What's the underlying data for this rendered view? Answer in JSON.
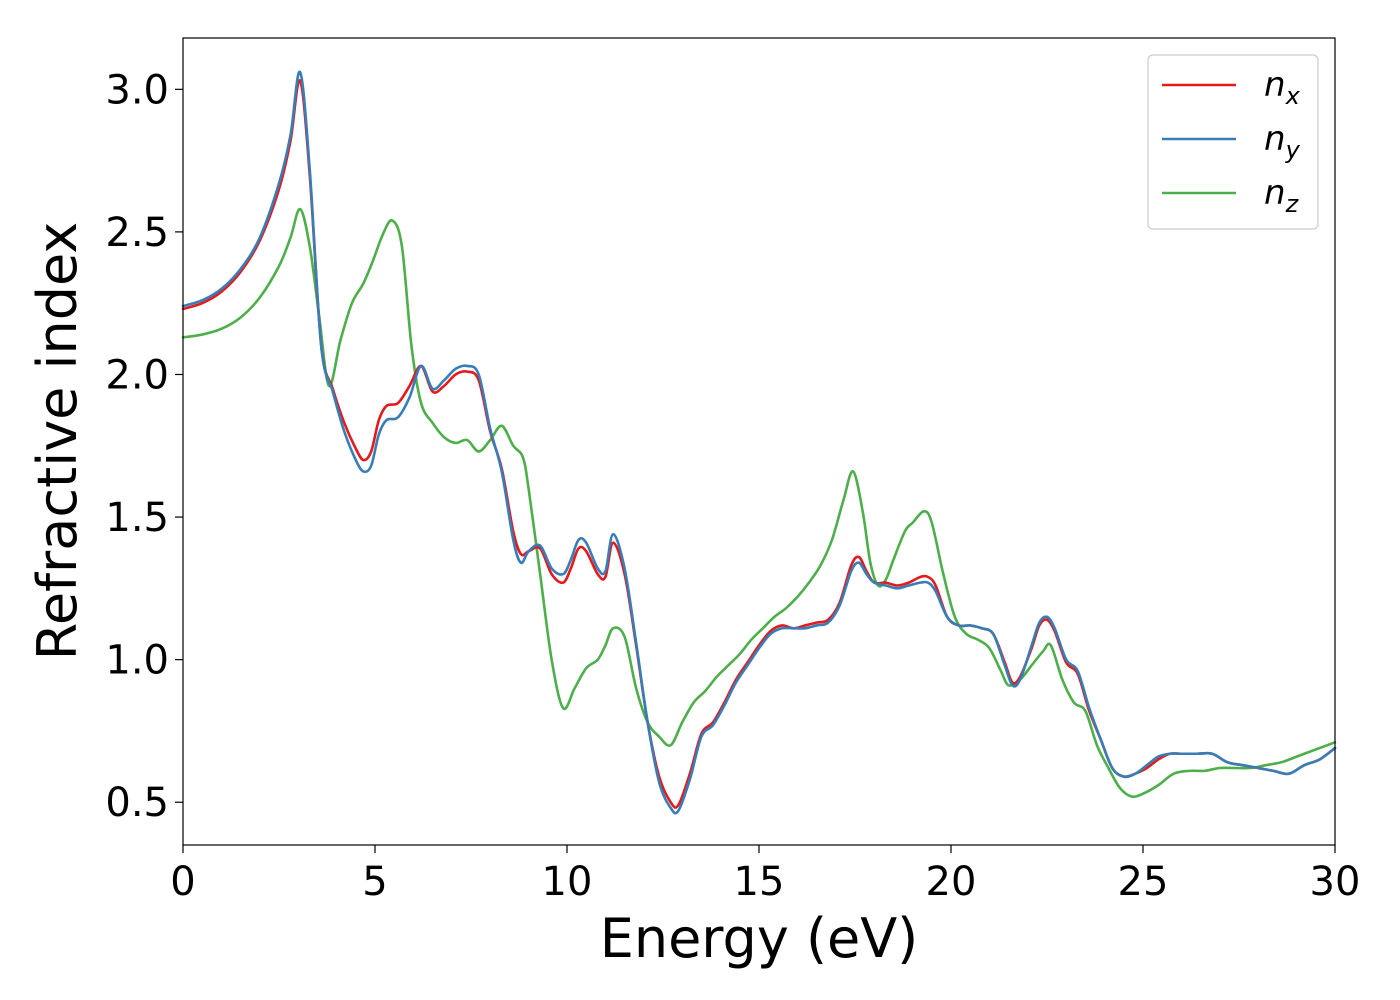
{
  "chart_data": {
    "type": "line",
    "xlabel": "Energy (eV)",
    "ylabel": "Refractive index",
    "xlim": [
      0,
      30
    ],
    "ylim": [
      0.35,
      3.18
    ],
    "xticks": [
      0,
      5,
      10,
      15,
      20,
      25,
      30
    ],
    "yticks": [
      0.5,
      1.0,
      1.5,
      2.0,
      2.5,
      3.0
    ],
    "xtick_labels": [
      "0",
      "5",
      "10",
      "15",
      "20",
      "25",
      "30"
    ],
    "ytick_labels": [
      "0.5",
      "1.0",
      "1.5",
      "2.0",
      "2.5",
      "3.0"
    ],
    "grid": false,
    "legend_position": "top-right",
    "series": [
      {
        "name": "n",
        "subscript": "x",
        "color": "#e41a1c",
        "x": [
          0,
          0.5,
          1,
          1.5,
          2,
          2.5,
          2.8,
          3.05,
          3.3,
          3.6,
          3.9,
          4.2,
          4.5,
          4.7,
          4.9,
          5.1,
          5.3,
          5.6,
          5.9,
          6.2,
          6.5,
          6.8,
          7.1,
          7.4,
          7.7,
          8.0,
          8.3,
          8.6,
          8.8,
          9.0,
          9.3,
          9.6,
          9.9,
          10.1,
          10.3,
          10.5,
          10.8,
          11.0,
          11.2,
          11.5,
          11.8,
          12.1,
          12.4,
          12.7,
          12.9,
          13.2,
          13.5,
          13.8,
          14.1,
          14.4,
          14.7,
          15.0,
          15.3,
          15.6,
          15.9,
          16.2,
          16.5,
          16.8,
          17.1,
          17.4,
          17.6,
          17.8,
          18.0,
          18.3,
          18.6,
          18.9,
          19.2,
          19.4,
          19.6,
          19.9,
          20.2,
          20.5,
          20.8,
          21.1,
          21.4,
          21.6,
          21.8,
          22.1,
          22.3,
          22.5,
          22.7,
          23.0,
          23.3,
          23.6,
          23.9,
          24.2,
          24.5,
          24.8,
          25.1,
          25.4,
          25.7,
          26.0,
          26.4,
          26.8,
          27.2,
          27.6,
          28.0,
          28.4,
          28.8,
          29.2,
          29.6,
          30.0
        ],
        "y": [
          2.23,
          2.25,
          2.29,
          2.36,
          2.47,
          2.65,
          2.82,
          3.03,
          2.7,
          2.1,
          1.95,
          1.83,
          1.74,
          1.7,
          1.73,
          1.84,
          1.89,
          1.9,
          1.96,
          2.03,
          1.94,
          1.96,
          2.0,
          2.01,
          1.98,
          1.8,
          1.67,
          1.45,
          1.37,
          1.38,
          1.39,
          1.3,
          1.27,
          1.32,
          1.39,
          1.38,
          1.3,
          1.29,
          1.41,
          1.3,
          1.05,
          0.78,
          0.59,
          0.5,
          0.49,
          0.6,
          0.74,
          0.78,
          0.85,
          0.93,
          0.99,
          1.05,
          1.1,
          1.12,
          1.11,
          1.12,
          1.13,
          1.14,
          1.2,
          1.33,
          1.36,
          1.31,
          1.27,
          1.27,
          1.26,
          1.27,
          1.29,
          1.29,
          1.26,
          1.15,
          1.12,
          1.12,
          1.11,
          1.09,
          0.99,
          0.92,
          0.94,
          1.04,
          1.12,
          1.14,
          1.1,
          0.99,
          0.95,
          0.82,
          0.72,
          0.62,
          0.59,
          0.6,
          0.62,
          0.65,
          0.67,
          0.67,
          0.67,
          0.67,
          0.64,
          0.63,
          0.62,
          0.61,
          0.6,
          0.63,
          0.65,
          0.69
        ]
      },
      {
        "name": "n",
        "subscript": "y",
        "color": "#377eb8",
        "x": [
          0,
          0.5,
          1,
          1.5,
          2,
          2.5,
          2.8,
          3.05,
          3.3,
          3.6,
          3.9,
          4.2,
          4.5,
          4.7,
          4.9,
          5.1,
          5.3,
          5.6,
          5.9,
          6.2,
          6.5,
          6.8,
          7.1,
          7.4,
          7.7,
          8.0,
          8.3,
          8.6,
          8.8,
          9.0,
          9.3,
          9.6,
          9.9,
          10.1,
          10.3,
          10.5,
          10.8,
          11.0,
          11.2,
          11.5,
          11.8,
          12.1,
          12.4,
          12.7,
          12.9,
          13.2,
          13.5,
          13.8,
          14.1,
          14.4,
          14.7,
          15.0,
          15.3,
          15.6,
          15.9,
          16.2,
          16.5,
          16.8,
          17.1,
          17.4,
          17.6,
          17.8,
          18.0,
          18.3,
          18.6,
          18.9,
          19.2,
          19.4,
          19.6,
          19.9,
          20.2,
          20.5,
          20.8,
          21.1,
          21.4,
          21.6,
          21.8,
          22.1,
          22.3,
          22.5,
          22.7,
          23.0,
          23.3,
          23.6,
          23.9,
          24.2,
          24.5,
          24.8,
          25.1,
          25.4,
          25.7,
          26.0,
          26.4,
          26.8,
          27.2,
          27.6,
          28.0,
          28.4,
          28.8,
          29.2,
          29.6,
          30.0
        ],
        "y": [
          2.24,
          2.26,
          2.3,
          2.37,
          2.48,
          2.67,
          2.84,
          3.06,
          2.72,
          2.1,
          1.94,
          1.8,
          1.7,
          1.66,
          1.68,
          1.79,
          1.84,
          1.85,
          1.92,
          2.03,
          1.95,
          1.98,
          2.02,
          2.03,
          2.0,
          1.81,
          1.66,
          1.42,
          1.34,
          1.38,
          1.4,
          1.32,
          1.3,
          1.35,
          1.42,
          1.41,
          1.32,
          1.31,
          1.44,
          1.32,
          1.06,
          0.78,
          0.57,
          0.48,
          0.47,
          0.58,
          0.73,
          0.77,
          0.84,
          0.92,
          0.98,
          1.04,
          1.09,
          1.11,
          1.11,
          1.11,
          1.12,
          1.13,
          1.19,
          1.31,
          1.34,
          1.3,
          1.27,
          1.26,
          1.25,
          1.26,
          1.27,
          1.27,
          1.24,
          1.15,
          1.12,
          1.12,
          1.11,
          1.09,
          0.98,
          0.91,
          0.93,
          1.05,
          1.13,
          1.15,
          1.11,
          1.0,
          0.96,
          0.83,
          0.72,
          0.62,
          0.59,
          0.6,
          0.63,
          0.66,
          0.67,
          0.67,
          0.67,
          0.67,
          0.64,
          0.63,
          0.62,
          0.61,
          0.6,
          0.63,
          0.65,
          0.69
        ]
      },
      {
        "name": "n",
        "subscript": "z",
        "color": "#4daf4a",
        "x": [
          0,
          0.5,
          1,
          1.5,
          2,
          2.5,
          2.8,
          3.05,
          3.3,
          3.55,
          3.8,
          4.1,
          4.4,
          4.7,
          4.95,
          5.2,
          5.45,
          5.7,
          5.95,
          6.2,
          6.5,
          6.8,
          7.1,
          7.4,
          7.7,
          8.0,
          8.3,
          8.6,
          8.85,
          9.0,
          9.3,
          9.6,
          9.9,
          10.2,
          10.5,
          10.8,
          11.0,
          11.2,
          11.5,
          11.8,
          12.1,
          12.4,
          12.7,
          13.0,
          13.3,
          13.6,
          13.9,
          14.2,
          14.5,
          14.8,
          15.1,
          15.4,
          15.7,
          16.0,
          16.3,
          16.6,
          16.9,
          17.2,
          17.45,
          17.7,
          17.9,
          18.1,
          18.3,
          18.5,
          18.8,
          19.0,
          19.3,
          19.5,
          19.8,
          20.1,
          20.4,
          20.7,
          21.0,
          21.3,
          21.5,
          21.8,
          22.1,
          22.4,
          22.6,
          22.9,
          23.2,
          23.5,
          23.8,
          24.1,
          24.4,
          24.7,
          25.0,
          25.4,
          25.8,
          26.2,
          26.6,
          27.0,
          27.4,
          27.8,
          28.2,
          28.6,
          29.0,
          29.4,
          29.8,
          30.0
        ],
        "y": [
          2.13,
          2.14,
          2.16,
          2.2,
          2.27,
          2.38,
          2.48,
          2.58,
          2.45,
          2.2,
          1.96,
          2.12,
          2.25,
          2.32,
          2.4,
          2.49,
          2.54,
          2.45,
          2.1,
          1.9,
          1.83,
          1.78,
          1.76,
          1.77,
          1.73,
          1.77,
          1.82,
          1.75,
          1.71,
          1.6,
          1.3,
          1.0,
          0.83,
          0.9,
          0.97,
          1.0,
          1.05,
          1.11,
          1.08,
          0.9,
          0.78,
          0.73,
          0.7,
          0.78,
          0.85,
          0.89,
          0.94,
          0.98,
          1.02,
          1.07,
          1.11,
          1.15,
          1.18,
          1.22,
          1.27,
          1.33,
          1.42,
          1.56,
          1.66,
          1.52,
          1.34,
          1.26,
          1.28,
          1.35,
          1.45,
          1.48,
          1.52,
          1.48,
          1.3,
          1.15,
          1.09,
          1.07,
          1.04,
          0.96,
          0.91,
          0.93,
          0.98,
          1.03,
          1.05,
          0.93,
          0.85,
          0.82,
          0.7,
          0.62,
          0.55,
          0.52,
          0.53,
          0.56,
          0.6,
          0.61,
          0.61,
          0.62,
          0.62,
          0.62,
          0.63,
          0.64,
          0.66,
          0.68,
          0.7,
          0.71
        ]
      }
    ]
  }
}
